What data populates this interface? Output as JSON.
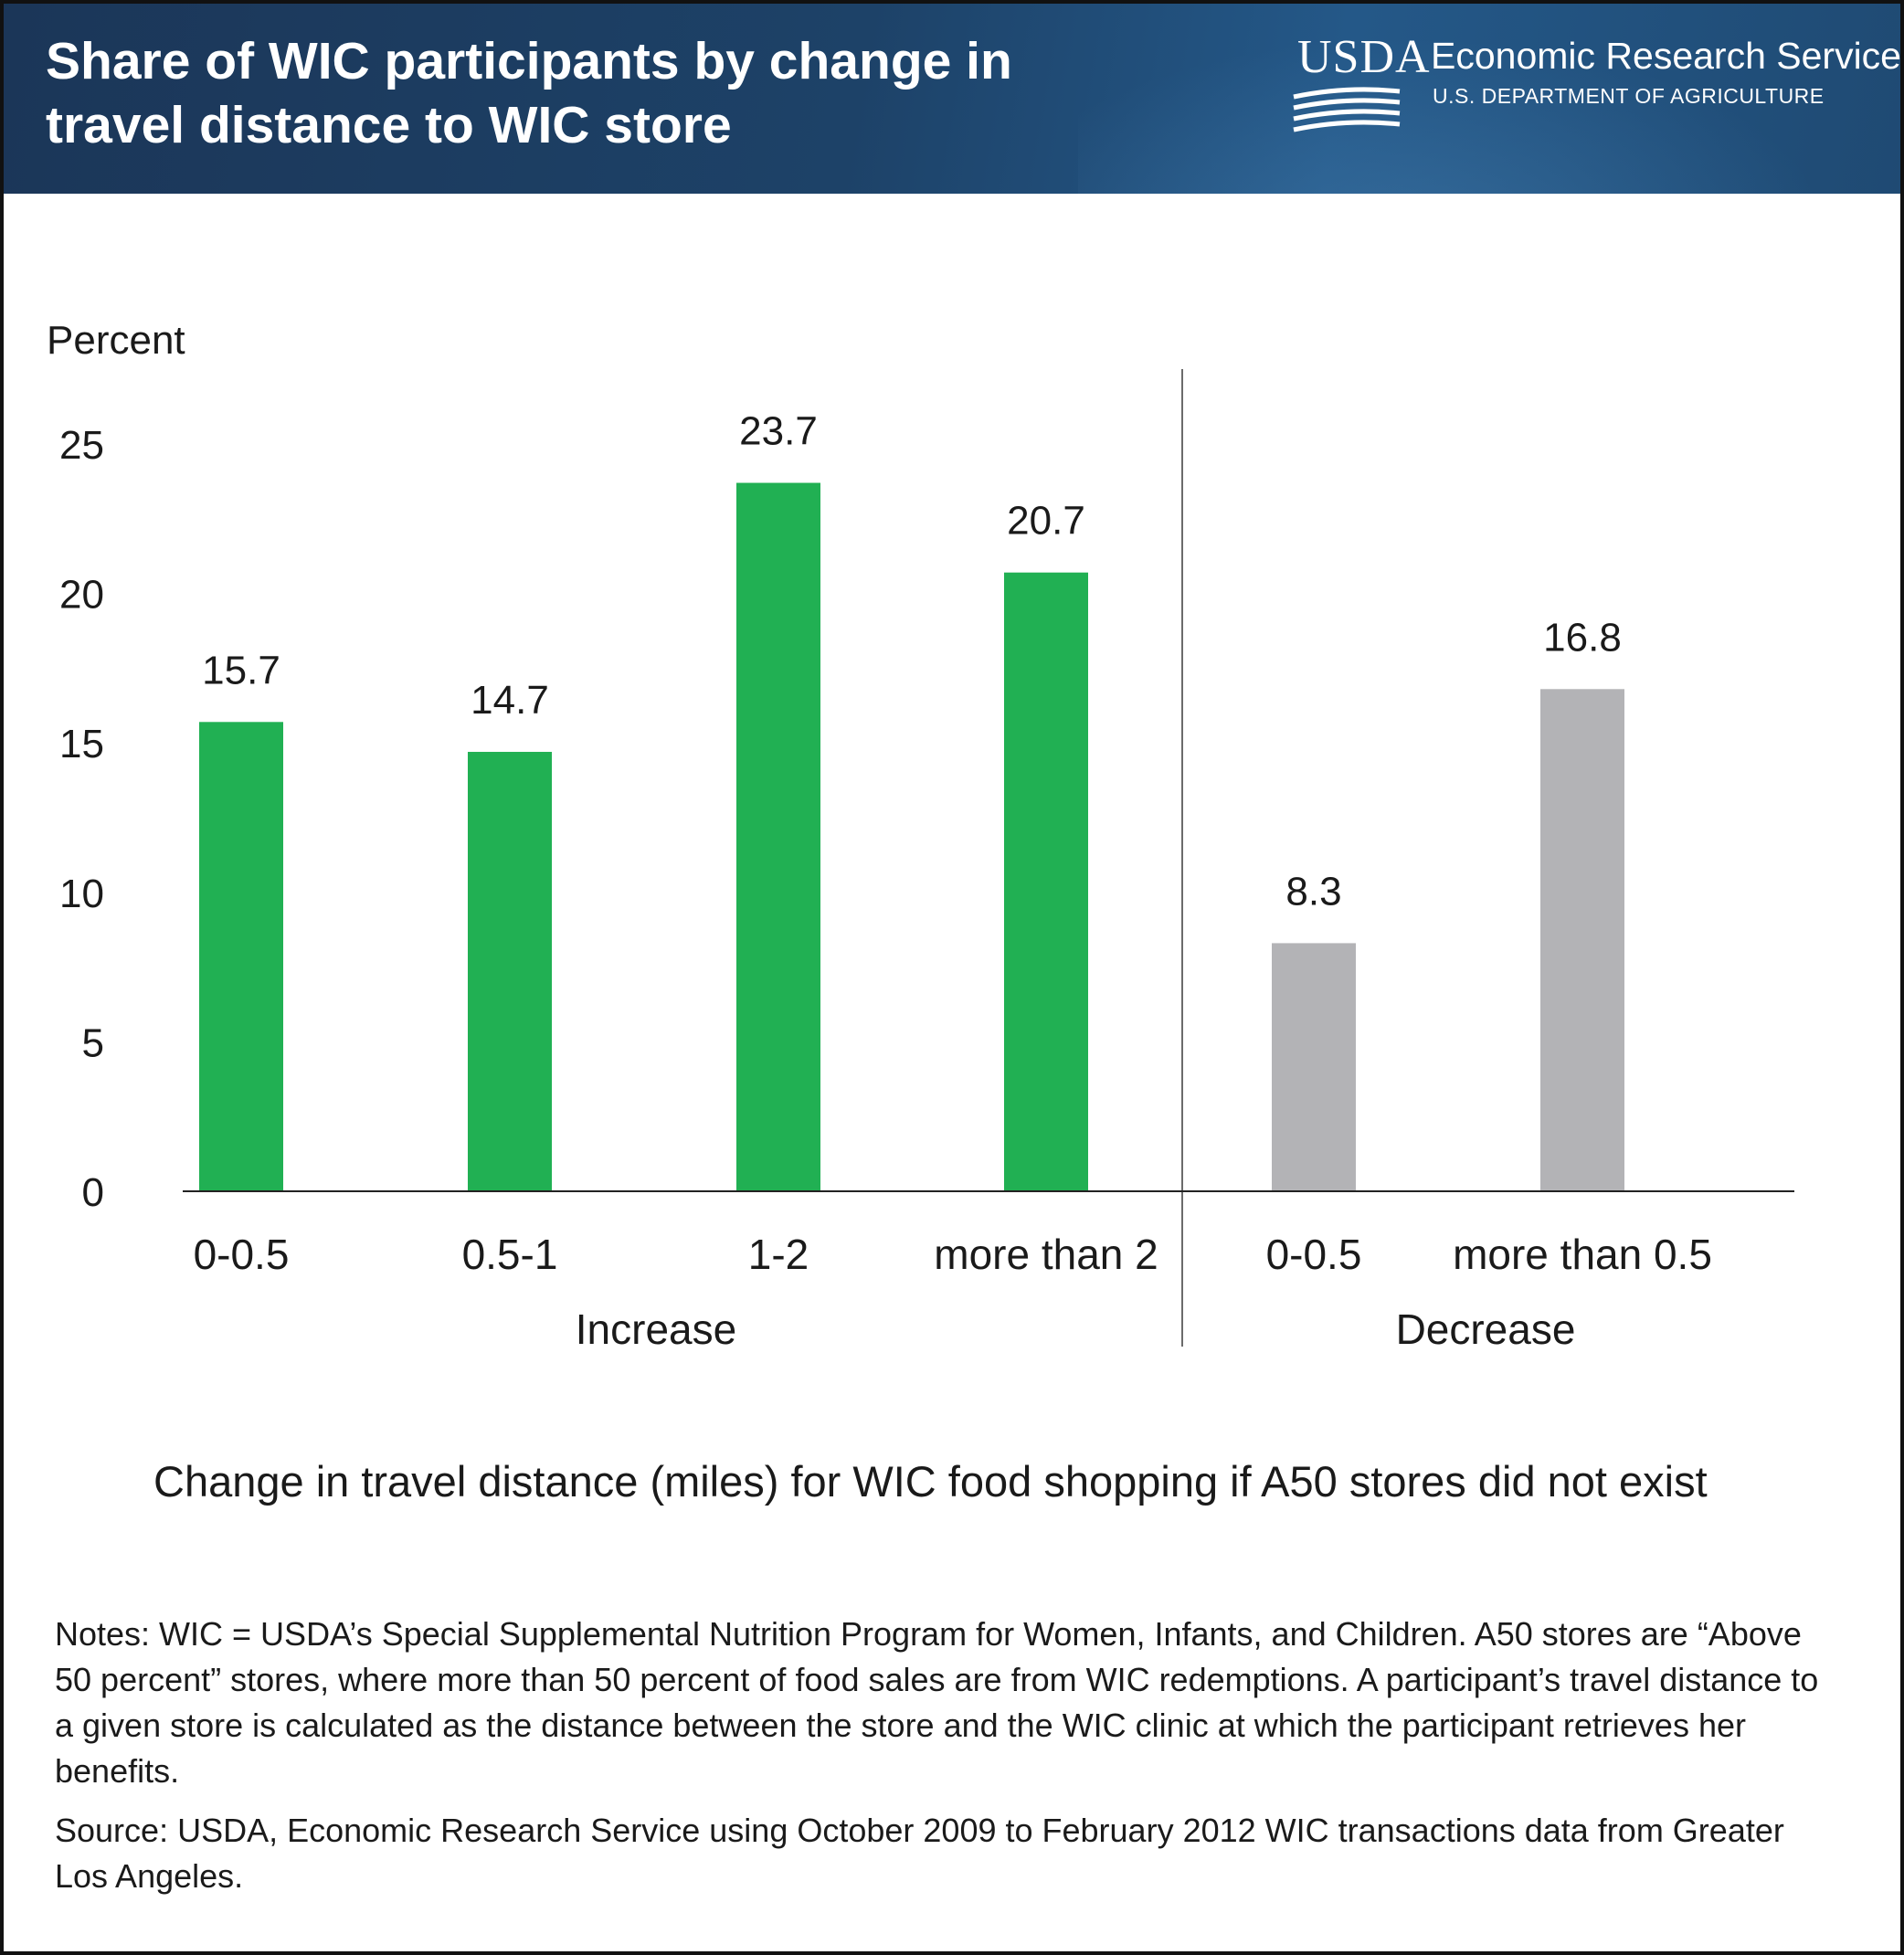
{
  "header": {
    "title": "Share of WIC participants by change in travel distance to WIC store",
    "logo_usda": "USDA",
    "logo_agency": "Economic Research Service",
    "logo_department": "U.S. DEPARTMENT OF AGRICULTURE"
  },
  "colors": {
    "header_bg": "#1d4268",
    "increase": "#21b053",
    "decrease": "#b3b3b6"
  },
  "chart_data": {
    "type": "bar",
    "title": "Share of WIC participants by change in travel distance to WIC store",
    "ylabel": "Percent",
    "xlabel": "Change in travel distance (miles) for WIC food shopping if A50 stores did not exist",
    "ylim": [
      0,
      25
    ],
    "yticks": [
      0,
      5,
      10,
      15,
      20,
      25
    ],
    "grid": false,
    "groups": [
      {
        "name": "Increase",
        "categories": [
          "0-0.5",
          "0.5-1",
          "1-2",
          "more than 2"
        ],
        "values": [
          15.7,
          14.7,
          23.7,
          20.7
        ],
        "labels": [
          "15.7",
          "14.7",
          "23.7",
          "20.7"
        ]
      },
      {
        "name": "Decrease",
        "categories": [
          "0-0.5",
          "more than 0.5"
        ],
        "values": [
          8.3,
          16.8
        ],
        "labels": [
          "8.3",
          "16.8"
        ]
      }
    ]
  },
  "notes": "Notes: WIC = USDA’s Special Supplemental Nutrition Program for Women, Infants, and Children. A50 stores are “Above 50 percent” stores, where more than 50 percent of food sales are from WIC redemptions. A participant’s travel distance to a given store is calculated as the distance between the store and the WIC clinic at which the participant retrieves her benefits.",
  "source": "Source: USDA, Economic Research Service using October 2009 to February 2012 WIC transactions data from Greater Los Angeles."
}
